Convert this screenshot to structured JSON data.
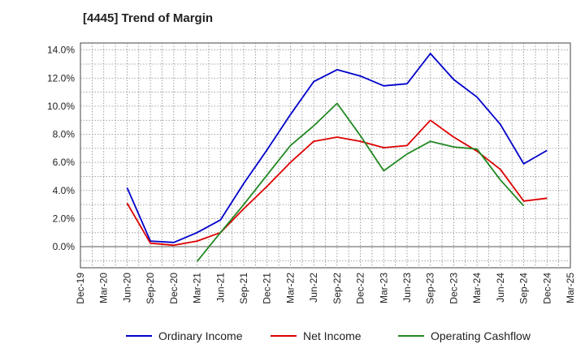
{
  "chart_data": {
    "type": "line",
    "title": "[4445]  Trend of Margin",
    "xlabel": "",
    "ylabel": "",
    "categories": [
      "Dec-19",
      "Mar-20",
      "Jun-20",
      "Sep-20",
      "Dec-20",
      "Mar-21",
      "Jun-21",
      "Sep-21",
      "Dec-21",
      "Mar-22",
      "Jun-22",
      "Sep-22",
      "Dec-22",
      "Mar-23",
      "Jun-23",
      "Sep-23",
      "Dec-23",
      "Mar-24",
      "Jun-24",
      "Sep-24",
      "Dec-24",
      "Mar-25"
    ],
    "y_ticks": [
      "0.0%",
      "2.0%",
      "4.0%",
      "6.0%",
      "8.0%",
      "10.0%",
      "12.0%",
      "14.0%"
    ],
    "ylim": [
      -1.5,
      14.5
    ],
    "grid": true,
    "legend_position": "bottom",
    "series": [
      {
        "name": "Ordinary Income",
        "color": "#0000cc",
        "values": [
          null,
          null,
          4.2,
          0.4,
          0.3,
          1.0,
          1.9,
          4.5,
          6.9,
          9.4,
          11.75,
          12.6,
          12.15,
          11.45,
          11.6,
          13.75,
          11.9,
          10.65,
          8.7,
          5.9,
          6.85,
          null
        ]
      },
      {
        "name": "Net Income",
        "color": "#dd0000",
        "values": [
          null,
          null,
          3.1,
          0.25,
          0.1,
          0.4,
          1.0,
          2.7,
          4.3,
          6.0,
          7.5,
          7.8,
          7.5,
          7.05,
          7.2,
          9.0,
          7.8,
          6.8,
          5.5,
          3.25,
          3.45,
          null
        ]
      },
      {
        "name": "Operating Cashflow",
        "color": "#228822",
        "values": [
          null,
          null,
          null,
          null,
          null,
          -1.05,
          1.0,
          3.0,
          5.1,
          7.2,
          8.6,
          10.2,
          7.9,
          5.4,
          6.6,
          7.5,
          7.1,
          6.95,
          4.75,
          2.9,
          null,
          null
        ]
      }
    ]
  }
}
